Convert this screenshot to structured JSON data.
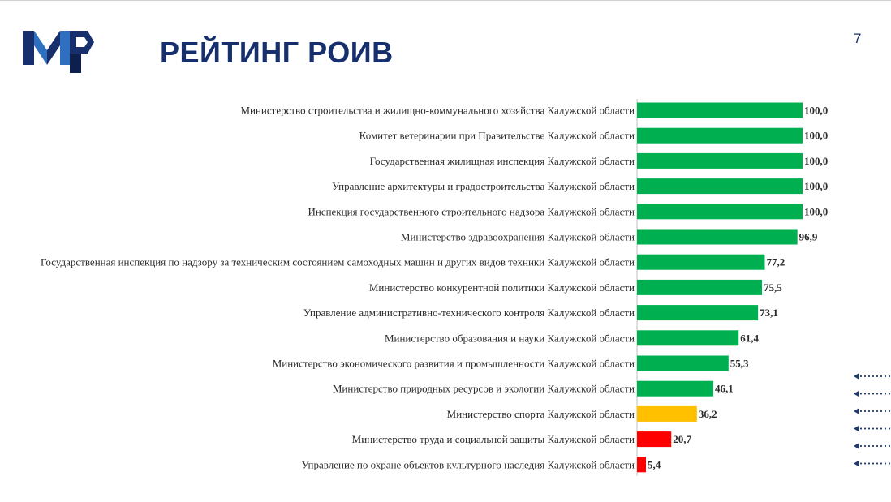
{
  "slide": {
    "title": "РЕЙТИНГ РОИВ",
    "page_number": "7",
    "logo_icon": "mr-logo-icon",
    "arrow_icon": "dotted-arrow-left-icon",
    "arrow_count": 6
  },
  "colors": {
    "title": "#17306d",
    "green": "#00b050",
    "yellow": "#ffc000",
    "red": "#ff0000",
    "arrow": "#1f3a6e"
  },
  "chart_data": {
    "type": "bar",
    "orientation": "horizontal",
    "categories": [
      "Министерство строительства и жилищно-коммунального хозяйства Калужской области",
      "Комитет ветеринарии при Правительстве Калужской области",
      "Государственная жилищная инспекция Калужской области",
      "Управление архитектуры и градостроительства Калужской области",
      "Инспекция государственного строительного надзора Калужской области",
      "Министерство здравоохранения Калужской области",
      "Государственная инспекция по надзору за техническим состоянием самоходных машин и других видов техники Калужской области",
      "Министерство конкурентной политики Калужской области",
      "Управление административно-технического контроля Калужской области",
      "Министерство образования и науки Калужской области",
      "Министерство экономического развития и промышленности Калужской области",
      "Министерство природных ресурсов и экологии Калужской области",
      "Министерство спорта Калужской области",
      "Министерство труда и социальной защиты Калужской области",
      "Управление по охране объектов культурного наследия Калужской области"
    ],
    "values": [
      100.0,
      100.0,
      100.0,
      100.0,
      100.0,
      96.9,
      77.2,
      75.5,
      73.1,
      61.4,
      55.3,
      46.1,
      36.2,
      20.7,
      5.4
    ],
    "value_labels": [
      "100,0",
      "100,0",
      "100,0",
      "100,0",
      "100,0",
      "96,9",
      "77,2",
      "75,5",
      "73,1",
      "61,4",
      "55,3",
      "46,1",
      "36,2",
      "20,7",
      "5,4"
    ],
    "bar_colors": [
      "#00b050",
      "#00b050",
      "#00b050",
      "#00b050",
      "#00b050",
      "#00b050",
      "#00b050",
      "#00b050",
      "#00b050",
      "#00b050",
      "#00b050",
      "#00b050",
      "#ffc000",
      "#ff0000",
      "#ff0000"
    ],
    "xlim": [
      0,
      100
    ],
    "grid": false,
    "legend": "none"
  }
}
